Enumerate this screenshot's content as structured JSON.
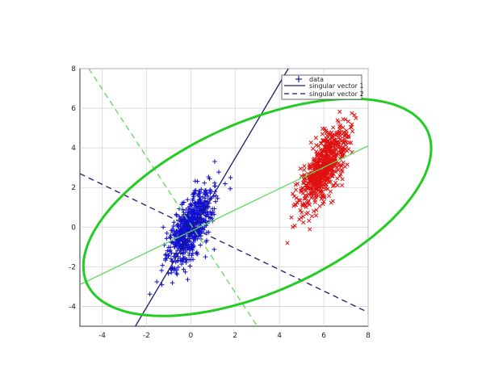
{
  "chart_data": {
    "type": "scatter",
    "title": "",
    "xlabel": "",
    "ylabel": "",
    "xlim": [
      -5,
      8
    ],
    "ylim": [
      -5,
      8
    ],
    "xticks": [
      "-4",
      "-2",
      "0",
      "2",
      "4",
      "6",
      "8"
    ],
    "yticks": [
      "8",
      "6",
      "4",
      "2",
      "0",
      "-2",
      "-4"
    ],
    "grid": true,
    "legend_position": "top-right",
    "legend": [
      {
        "label": "data",
        "style": "plus-marker",
        "color": "#1a1a8c"
      },
      {
        "label": "singular vector 1",
        "style": "solid-line",
        "color": "#1a1a6e"
      },
      {
        "label": "singular vector 2",
        "style": "dashed-line",
        "color": "#1a1a6e"
      }
    ],
    "series": [
      {
        "marker": "plus",
        "color": "#1010cc",
        "center": [
          0,
          0
        ],
        "count": 650,
        "major_axis_direction": [
          1,
          2.4
        ],
        "spread_major": 1.1,
        "spread_minor": 0.35
      },
      {
        "marker": "x",
        "color": "#e01010",
        "center": [
          6,
          3
        ],
        "count": 650,
        "major_axis_direction": [
          1,
          2.4
        ],
        "spread_major": 1.1,
        "spread_minor": 0.35
      }
    ],
    "lines": [
      {
        "name": "singular vector 1",
        "color": "#1a1a6e",
        "dash": "solid",
        "from": [
          -2.5,
          -5
        ],
        "to": [
          4.4,
          8
        ]
      },
      {
        "name": "singular vector 2",
        "color": "#1a1a6e",
        "dash": "dashed",
        "from": [
          -5,
          2.7
        ],
        "to": [
          8,
          -4.3
        ]
      },
      {
        "color": "#5ed85e",
        "dash": "solid",
        "from": [
          -5,
          -2.9
        ],
        "to": [
          8,
          4.1
        ]
      },
      {
        "color": "#5ed85e",
        "dash": "dashed",
        "from": [
          -4.6,
          8
        ],
        "to": [
          3,
          -5
        ]
      }
    ],
    "ellipse": {
      "color": "#22cc22",
      "center": [
        3,
        1
      ],
      "semi_major": 8.6,
      "semi_minor": 4.2,
      "angle_deg": 28
    }
  }
}
